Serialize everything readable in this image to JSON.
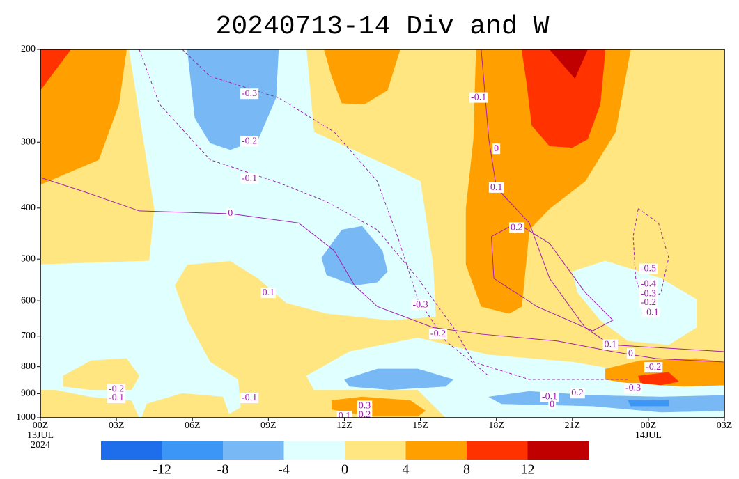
{
  "chart_data": {
    "type": "contour",
    "title": "20240713-14 Div and W",
    "xlim": [
      0,
      27
    ],
    "xticks": [
      {
        "value": 0,
        "label": "00Z"
      },
      {
        "value": 3,
        "label": "03Z"
      },
      {
        "value": 6,
        "label": "06Z"
      },
      {
        "value": 9,
        "label": "09Z"
      },
      {
        "value": 12,
        "label": "12Z"
      },
      {
        "value": 15,
        "label": "15Z"
      },
      {
        "value": 18,
        "label": "18Z"
      },
      {
        "value": 21,
        "label": "21Z"
      },
      {
        "value": 24,
        "label": "00Z"
      },
      {
        "value": 27,
        "label": "03Z"
      }
    ],
    "date_labels": [
      {
        "value": 0,
        "label": "13JUL"
      },
      {
        "value": 0,
        "label": "2024"
      },
      {
        "value": 24,
        "label": "14JUL"
      }
    ],
    "ylim": [
      1000,
      200
    ],
    "yscale": "log",
    "yticks": [
      200,
      300,
      400,
      500,
      600,
      700,
      800,
      900,
      1000
    ],
    "colorbar": {
      "levels": [
        -12,
        -8,
        -4,
        0,
        4,
        8,
        12
      ],
      "colors": [
        "#1e6eeb",
        "#3c96f5",
        "#78b9f5",
        "#e0ffff",
        "#ffe680",
        "#ffa000",
        "#ff3200",
        "#c00000"
      ]
    },
    "regions": [
      {
        "color": "#ffe680",
        "points": [
          [
            0,
            200
          ],
          [
            27,
            200
          ],
          [
            27,
            1000
          ],
          [
            0,
            1000
          ]
        ]
      },
      {
        "color": "#e0ffff",
        "points": [
          [
            3.5,
            200
          ],
          [
            10.5,
            200
          ],
          [
            10.8,
            287
          ],
          [
            13.8,
            334
          ],
          [
            15.0,
            356
          ],
          [
            15.5,
            512
          ],
          [
            15.6,
            643
          ],
          [
            13.8,
            653
          ],
          [
            11.3,
            634
          ],
          [
            9.7,
            605
          ],
          [
            8.6,
            544
          ],
          [
            7.5,
            504
          ],
          [
            5.8,
            512
          ],
          [
            5.3,
            561
          ],
          [
            5.8,
            653
          ],
          [
            6.7,
            784
          ],
          [
            7.8,
            846
          ],
          [
            7.9,
            955
          ],
          [
            7.2,
            1000
          ],
          [
            3.9,
            1000
          ],
          [
            3.6,
            927
          ],
          [
            2.0,
            913
          ],
          [
            0.6,
            885
          ],
          [
            0,
            885
          ],
          [
            0,
            512
          ],
          [
            4.3,
            504
          ],
          [
            4.5,
            401
          ]
        ]
      },
      {
        "color": "#ffe680",
        "points": [
          [
            0.9,
            833
          ],
          [
            2.0,
            779
          ],
          [
            3.4,
            772
          ],
          [
            3.9,
            833
          ],
          [
            3.6,
            885
          ],
          [
            2.0,
            885
          ],
          [
            0.9,
            872
          ]
        ]
      },
      {
        "color": "#ffe680",
        "points": [
          [
            0,
            941
          ],
          [
            1.4,
            950
          ],
          [
            1.7,
            1000
          ],
          [
            0,
            1000
          ]
        ]
      },
      {
        "color": "#ffe680",
        "points": [
          [
            4.2,
            941
          ],
          [
            5.6,
            899
          ],
          [
            7.2,
            913
          ],
          [
            7.5,
            1000
          ],
          [
            4.0,
            1000
          ]
        ]
      },
      {
        "color": "#e0ffff",
        "points": [
          [
            10.5,
            833
          ],
          [
            12.2,
            749
          ],
          [
            14.9,
            705
          ],
          [
            17.7,
            760
          ],
          [
            21.0,
            784
          ],
          [
            22.6,
            808
          ],
          [
            27,
            808
          ],
          [
            27,
            1000
          ],
          [
            16.0,
            1000
          ],
          [
            14.9,
            885
          ],
          [
            10.8,
            885
          ]
        ]
      },
      {
        "color": "#e0ffff",
        "points": [
          [
            21.0,
            528
          ],
          [
            22.3,
            504
          ],
          [
            24.5,
            544
          ],
          [
            25.9,
            596
          ],
          [
            25.9,
            674
          ],
          [
            24.8,
            727
          ],
          [
            23.2,
            715
          ],
          [
            22.1,
            653
          ],
          [
            21.2,
            578
          ]
        ]
      },
      {
        "color": "#78b9f5",
        "points": [
          [
            5.8,
            200
          ],
          [
            9.4,
            200
          ],
          [
            9.3,
            247
          ],
          [
            8.6,
            296
          ],
          [
            7.5,
            310
          ],
          [
            6.7,
            301
          ],
          [
            6.1,
            270
          ]
        ]
      },
      {
        "color": "#78b9f5",
        "points": [
          [
            11.1,
            497
          ],
          [
            11.9,
            440
          ],
          [
            12.7,
            433
          ],
          [
            13.5,
            482
          ],
          [
            13.7,
            528
          ],
          [
            13.3,
            553
          ],
          [
            12.4,
            561
          ],
          [
            11.3,
            536
          ]
        ]
      },
      {
        "color": "#78b9f5",
        "points": [
          [
            12.0,
            846
          ],
          [
            13.3,
            808
          ],
          [
            14.9,
            808
          ],
          [
            16.3,
            846
          ],
          [
            16.0,
            872
          ],
          [
            13.8,
            885
          ],
          [
            12.2,
            872
          ]
        ]
      },
      {
        "color": "#78b9f5",
        "points": [
          [
            17.7,
            913
          ],
          [
            19.3,
            891
          ],
          [
            21.8,
            907
          ],
          [
            24.5,
            913
          ],
          [
            27,
            907
          ],
          [
            27,
            970
          ],
          [
            24.5,
            976
          ],
          [
            21.8,
            950
          ],
          [
            18.2,
            941
          ]
        ]
      },
      {
        "color": "#3c96f5",
        "points": [
          [
            23.2,
            927
          ],
          [
            24.8,
            927
          ],
          [
            24.8,
            950
          ],
          [
            23.3,
            950
          ]
        ]
      },
      {
        "color": "#ffa000",
        "points": [
          [
            0,
            200
          ],
          [
            3.4,
            200
          ],
          [
            3.1,
            254
          ],
          [
            2.3,
            324
          ],
          [
            0,
            361
          ]
        ]
      },
      {
        "color": "#ff3200",
        "points": [
          [
            0,
            200
          ],
          [
            1.2,
            200
          ],
          [
            0,
            239
          ]
        ]
      },
      {
        "color": "#ffa000",
        "points": [
          [
            11.2,
            200
          ],
          [
            14.2,
            200
          ],
          [
            13.7,
            239
          ],
          [
            12.8,
            254
          ],
          [
            11.9,
            253
          ],
          [
            11.5,
            225
          ]
        ]
      },
      {
        "color": "#ffa000",
        "points": [
          [
            17.2,
            200
          ],
          [
            23.3,
            200
          ],
          [
            22.7,
            287
          ],
          [
            21.5,
            356
          ],
          [
            20.1,
            401
          ],
          [
            19.3,
            440
          ],
          [
            19.0,
            615
          ],
          [
            18.5,
            634
          ],
          [
            17.4,
            615
          ],
          [
            16.8,
            512
          ],
          [
            16.8,
            401
          ],
          [
            17.1,
            296
          ]
        ]
      },
      {
        "color": "#ff3200",
        "points": [
          [
            19.0,
            200
          ],
          [
            22.3,
            200
          ],
          [
            22.1,
            254
          ],
          [
            21.6,
            296
          ],
          [
            21.0,
            307
          ],
          [
            20.1,
            305
          ],
          [
            19.4,
            279
          ],
          [
            19.2,
            232
          ]
        ]
      },
      {
        "color": "#c00000",
        "points": [
          [
            20.1,
            200
          ],
          [
            21.6,
            200
          ],
          [
            21.1,
            227
          ]
        ]
      },
      {
        "color": "#ffa000",
        "points": [
          [
            22.3,
            808
          ],
          [
            23.7,
            779
          ],
          [
            25.9,
            772
          ],
          [
            27,
            784
          ],
          [
            27,
            867
          ],
          [
            25.4,
            872
          ],
          [
            23.2,
            859
          ],
          [
            22.3,
            846
          ]
        ]
      },
      {
        "color": "#ff3200",
        "points": [
          [
            23.6,
            833
          ],
          [
            24.8,
            820
          ],
          [
            25.2,
            854
          ],
          [
            24.5,
            867
          ],
          [
            23.7,
            859
          ]
        ]
      },
      {
        "color": "#ffa000",
        "points": [
          [
            11.5,
            927
          ],
          [
            12.7,
            913
          ],
          [
            14.6,
            927
          ],
          [
            15.2,
            970
          ],
          [
            14.9,
            994
          ],
          [
            13.0,
            994
          ],
          [
            11.5,
            964
          ]
        ]
      }
    ],
    "contour_color": "#a020b0",
    "contours": [
      {
        "level": 0,
        "points": [
          [
            0,
            350
          ],
          [
            1.7,
            372
          ],
          [
            3.9,
            405
          ],
          [
            7.5,
            410
          ],
          [
            10.2,
            427
          ],
          [
            11.6,
            482
          ],
          [
            12.4,
            561
          ],
          [
            13.3,
            615
          ],
          [
            15.5,
            674
          ],
          [
            17.4,
            694
          ],
          [
            20.4,
            715
          ],
          [
            22.6,
            749
          ],
          [
            24.3,
            772
          ],
          [
            27,
            784
          ]
        ]
      },
      {
        "level": -0.1,
        "points": [
          [
            3.9,
            200
          ],
          [
            4.7,
            254
          ],
          [
            6.7,
            324
          ],
          [
            9.4,
            358
          ],
          [
            11.3,
            389
          ],
          [
            13.3,
            440
          ],
          [
            14.9,
            544
          ],
          [
            16.3,
            674
          ],
          [
            17.1,
            784
          ],
          [
            19.3,
            846
          ],
          [
            23.2,
            846
          ]
        ]
      },
      {
        "level": -0.3,
        "points": [
          [
            5.6,
            200
          ],
          [
            6.7,
            225
          ],
          [
            9.4,
            247
          ],
          [
            11.6,
            287
          ],
          [
            13.3,
            356
          ],
          [
            14.1,
            453
          ],
          [
            14.9,
            596
          ],
          [
            16.0,
            715
          ],
          [
            17.7,
            833
          ]
        ]
      },
      {
        "level": 0.1,
        "points": [
          [
            17.4,
            200
          ],
          [
            17.7,
            296
          ],
          [
            18.0,
            366
          ],
          [
            19.3,
            427
          ],
          [
            20.1,
            544
          ],
          [
            21.5,
            674
          ],
          [
            22.5,
            727
          ],
          [
            24.8,
            738
          ],
          [
            27,
            749
          ]
        ]
      },
      {
        "level": -0.5,
        "points": [
          [
            23.6,
            401
          ],
          [
            24.4,
            427
          ],
          [
            24.8,
            497
          ],
          [
            24.5,
            578
          ],
          [
            23.9,
            615
          ],
          [
            23.5,
            544
          ],
          [
            23.4,
            453
          ],
          [
            23.6,
            401
          ]
        ]
      },
      {
        "level": 0.2,
        "points": [
          [
            17.8,
            453
          ],
          [
            18.8,
            427
          ],
          [
            20.1,
            467
          ],
          [
            21.5,
            578
          ],
          [
            22.6,
            653
          ],
          [
            21.8,
            684
          ],
          [
            19.6,
            615
          ],
          [
            17.9,
            544
          ],
          [
            17.8,
            453
          ]
        ]
      }
    ],
    "contour_labels": [
      {
        "value": -0.3,
        "x": 8.25,
        "p": 243
      },
      {
        "value": -0.2,
        "x": 8.25,
        "p": 299
      },
      {
        "value": -0.1,
        "x": 8.25,
        "p": 352
      },
      {
        "value": 0,
        "x": 7.5,
        "p": 410
      },
      {
        "value": 0.1,
        "x": 9.0,
        "p": 580
      },
      {
        "value": -0.3,
        "x": 15.0,
        "p": 611
      },
      {
        "value": -0.2,
        "x": 15.7,
        "p": 694
      },
      {
        "value": -0.1,
        "x": 17.3,
        "p": 247
      },
      {
        "value": 0,
        "x": 18.0,
        "p": 309
      },
      {
        "value": 0.1,
        "x": 18.0,
        "p": 366
      },
      {
        "value": 0.2,
        "x": 18.8,
        "p": 436
      },
      {
        "value": -0.5,
        "x": 24.0,
        "p": 522
      },
      {
        "value": -0.4,
        "x": 24.0,
        "p": 558
      },
      {
        "value": -0.3,
        "x": 24.0,
        "p": 582
      },
      {
        "value": -0.2,
        "x": 24.0,
        "p": 605
      },
      {
        "value": -0.1,
        "x": 24.1,
        "p": 632
      },
      {
        "value": 0.1,
        "x": 22.5,
        "p": 727
      },
      {
        "value": 0,
        "x": 23.3,
        "p": 756
      },
      {
        "value": -0.2,
        "x": 24.2,
        "p": 803
      },
      {
        "value": -0.3,
        "x": 23.4,
        "p": 880
      },
      {
        "value": -0.2,
        "x": 3.0,
        "p": 883
      },
      {
        "value": -0.1,
        "x": 3.0,
        "p": 918
      },
      {
        "value": -0.1,
        "x": 8.25,
        "p": 918
      },
      {
        "value": 0.3,
        "x": 12.8,
        "p": 950
      },
      {
        "value": 0.2,
        "x": 12.8,
        "p": 988
      },
      {
        "value": 0.1,
        "x": 12.0,
        "p": 994
      },
      {
        "value": 0.2,
        "x": 21.2,
        "p": 899
      },
      {
        "value": -0.1,
        "x": 20.1,
        "p": 913
      },
      {
        "value": 0,
        "x": 20.2,
        "p": 944
      }
    ]
  }
}
